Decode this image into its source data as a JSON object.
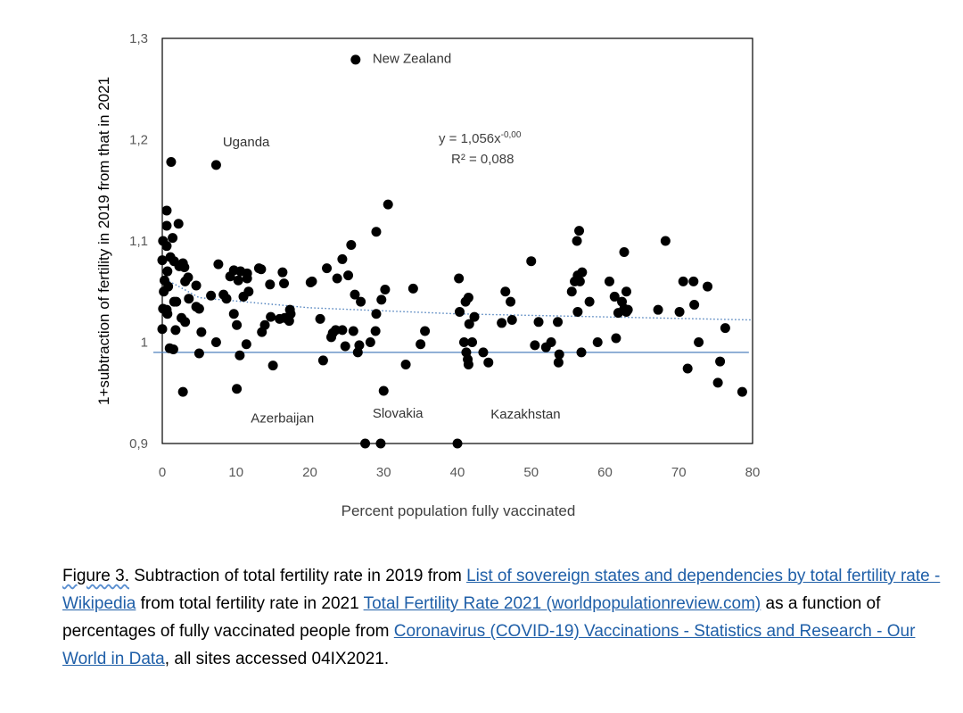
{
  "chart_data": {
    "type": "scatter",
    "xlabel": "Percent population fully vaccinated",
    "ylabel": "1+subtraction of fertility in 2019 from that in 2021",
    "xlim": [
      0,
      80
    ],
    "ylim": [
      0.9,
      1.3
    ],
    "x_ticks": [
      "0",
      "10",
      "20",
      "30",
      "40",
      "50",
      "60",
      "70",
      "80"
    ],
    "y_ticks": [
      "0,9",
      "1",
      "1,1",
      "1,2",
      "1,3"
    ],
    "grid": false,
    "legend": "none",
    "annotations": [
      {
        "text": "New Zealand",
        "x": 28.5,
        "y": 1.28
      },
      {
        "text": "Uganda",
        "x": 8.2,
        "y": 1.198
      },
      {
        "text": "Azerbaijan",
        "x": 12,
        "y": 0.925
      },
      {
        "text": "Slovakia",
        "x": 28.5,
        "y": 0.93
      },
      {
        "text": "Kazakhstan",
        "x": 44.5,
        "y": 0.929
      }
    ],
    "trendline_equation": {
      "text": "y = 1,056x",
      "sup": "-0,00"
    },
    "trendline_r2": "R² = 0,088",
    "horizontal_line": {
      "y": 0.99,
      "color": "#4f81bd"
    },
    "trendline": {
      "points": [
        [
          0.5,
          1.062
        ],
        [
          5,
          1.044
        ],
        [
          20,
          1.034
        ],
        [
          40,
          1.028
        ],
        [
          60,
          1.025
        ],
        [
          80,
          1.022
        ]
      ],
      "color": "#4f81bd"
    },
    "points": [
      [
        26.2,
        1.279
      ],
      [
        1.2,
        1.178
      ],
      [
        7.3,
        1.175
      ],
      [
        0.6,
        1.13
      ],
      [
        0.6,
        1.115
      ],
      [
        2.2,
        1.117
      ],
      [
        1.4,
        1.103
      ],
      [
        0.1,
        1.1
      ],
      [
        0.6,
        1.095
      ],
      [
        0.0,
        1.081
      ],
      [
        1.1,
        1.084
      ],
      [
        1.6,
        1.08
      ],
      [
        2.3,
        1.075
      ],
      [
        2.8,
        1.078
      ],
      [
        3.0,
        1.074
      ],
      [
        0.7,
        1.07
      ],
      [
        0.3,
        1.061
      ],
      [
        0.8,
        1.055
      ],
      [
        0.2,
        1.05
      ],
      [
        3.5,
        1.064
      ],
      [
        3.1,
        1.06
      ],
      [
        4.6,
        1.056
      ],
      [
        1.6,
        1.04
      ],
      [
        1.9,
        1.04
      ],
      [
        3.6,
        1.043
      ],
      [
        6.6,
        1.046
      ],
      [
        0.1,
        1.033
      ],
      [
        0.7,
        1.028
      ],
      [
        0.6,
        1.032
      ],
      [
        4.6,
        1.035
      ],
      [
        5.0,
        1.033
      ],
      [
        2.6,
        1.024
      ],
      [
        3.1,
        1.02
      ],
      [
        0.0,
        1.013
      ],
      [
        1.8,
        1.012
      ],
      [
        5.3,
        1.01
      ],
      [
        7.3,
        1.0
      ],
      [
        1.5,
        0.993
      ],
      [
        1.0,
        0.994
      ],
      [
        5.0,
        0.989
      ],
      [
        2.8,
        0.951
      ],
      [
        10.1,
        0.954
      ],
      [
        7.6,
        1.077
      ],
      [
        9.7,
        1.071
      ],
      [
        10.6,
        1.07
      ],
      [
        11.5,
        1.068
      ],
      [
        13.1,
        1.073
      ],
      [
        13.4,
        1.072
      ],
      [
        11.5,
        1.063
      ],
      [
        8.3,
        1.047
      ],
      [
        8.7,
        1.043
      ],
      [
        9.2,
        1.065
      ],
      [
        10.3,
        1.061
      ],
      [
        11.0,
        1.045
      ],
      [
        11.7,
        1.05
      ],
      [
        9.7,
        1.028
      ],
      [
        10.1,
        1.017
      ],
      [
        13.5,
        1.01
      ],
      [
        11.4,
        0.998
      ],
      [
        10.5,
        0.987
      ],
      [
        15.0,
        0.977
      ],
      [
        14.6,
        1.057
      ],
      [
        16.3,
        1.069
      ],
      [
        16.5,
        1.058
      ],
      [
        14.7,
        1.025
      ],
      [
        15.9,
        1.023
      ],
      [
        16.6,
        1.024
      ],
      [
        17.3,
        1.032
      ],
      [
        17.4,
        1.028
      ],
      [
        17.2,
        1.021
      ],
      [
        13.9,
        1.017
      ],
      [
        20.1,
        1.059
      ],
      [
        20.3,
        1.06
      ],
      [
        22.3,
        1.073
      ],
      [
        23.7,
        1.063
      ],
      [
        24.4,
        1.082
      ],
      [
        25.2,
        1.066
      ],
      [
        21.4,
        1.023
      ],
      [
        21.8,
        0.982
      ],
      [
        22.9,
        1.005
      ],
      [
        23.5,
        1.012
      ],
      [
        24.8,
        0.996
      ],
      [
        25.6,
        1.096
      ],
      [
        26.1,
        1.047
      ],
      [
        26.9,
        1.04
      ],
      [
        25.9,
        1.011
      ],
      [
        26.7,
        0.997
      ],
      [
        26.5,
        0.99
      ],
      [
        24.4,
        1.012
      ],
      [
        23.1,
        1.009
      ],
      [
        29.0,
        1.109
      ],
      [
        30.6,
        1.136
      ],
      [
        30.2,
        1.052
      ],
      [
        29.7,
        1.042
      ],
      [
        29.0,
        1.028
      ],
      [
        28.9,
        1.011
      ],
      [
        28.2,
        1.0
      ],
      [
        27.5,
        0.9
      ],
      [
        29.6,
        0.9
      ],
      [
        30.0,
        0.952
      ],
      [
        34.0,
        1.053
      ],
      [
        35.0,
        0.998
      ],
      [
        35.6,
        1.011
      ],
      [
        33.0,
        0.978
      ],
      [
        40.2,
        1.063
      ],
      [
        40.3,
        1.03
      ],
      [
        40.9,
        1.0
      ],
      [
        41.1,
        1.04
      ],
      [
        41.5,
        1.044
      ],
      [
        41.6,
        1.018
      ],
      [
        42.3,
        1.025
      ],
      [
        41.2,
        0.99
      ],
      [
        41.4,
        0.983
      ],
      [
        41.5,
        0.978
      ],
      [
        42.0,
        1.0
      ],
      [
        43.5,
        0.99
      ],
      [
        44.2,
        0.98
      ],
      [
        40.0,
        0.9
      ],
      [
        46.5,
        1.05
      ],
      [
        47.2,
        1.04
      ],
      [
        46.0,
        1.019
      ],
      [
        47.4,
        1.022
      ],
      [
        50.0,
        1.08
      ],
      [
        50.5,
        0.997
      ],
      [
        51.0,
        1.02
      ],
      [
        52.0,
        0.995
      ],
      [
        52.7,
        1.0
      ],
      [
        53.6,
        1.02
      ],
      [
        53.8,
        0.988
      ],
      [
        53.7,
        0.98
      ],
      [
        55.5,
        1.05
      ],
      [
        55.9,
        1.06
      ],
      [
        56.3,
        1.066
      ],
      [
        56.6,
        1.06
      ],
      [
        56.9,
        1.069
      ],
      [
        56.2,
        1.1
      ],
      [
        56.5,
        1.11
      ],
      [
        56.3,
        1.03
      ],
      [
        56.8,
        0.99
      ],
      [
        57.9,
        1.04
      ],
      [
        59.0,
        1.0
      ],
      [
        60.6,
        1.06
      ],
      [
        61.3,
        1.045
      ],
      [
        61.8,
        1.029
      ],
      [
        62.6,
        1.033
      ],
      [
        62.9,
        1.03
      ],
      [
        63.1,
        1.032
      ],
      [
        62.3,
        1.04
      ],
      [
        62.9,
        1.05
      ],
      [
        62.6,
        1.089
      ],
      [
        61.5,
        1.004
      ],
      [
        67.2,
        1.032
      ],
      [
        68.2,
        1.1
      ],
      [
        70.1,
        1.03
      ],
      [
        70.6,
        1.06
      ],
      [
        71.2,
        0.974
      ],
      [
        72.0,
        1.06
      ],
      [
        72.1,
        1.037
      ],
      [
        72.7,
        1.0
      ],
      [
        73.9,
        1.055
      ],
      [
        75.3,
        0.96
      ],
      [
        75.6,
        0.981
      ],
      [
        76.3,
        1.014
      ],
      [
        78.6,
        0.951
      ]
    ]
  },
  "caption": {
    "prefix": "Figure 3.",
    "part1": " Subtraction of total fertility rate in 2019 from ",
    "link1": "List of sovereign states and dependencies by total fertility rate - Wikipedia",
    "part2": " from total fertility rate in 2021 ",
    "link2": "Total Fertility Rate 2021 (worldpopulationreview.com)",
    "part3": " as a function of percentages of fully vaccinated people from ",
    "link3": "Coronavirus (COVID-19) Vaccinations - Statistics and Research - Our World in Data",
    "part4": ", all sites accessed 04IX2021."
  }
}
